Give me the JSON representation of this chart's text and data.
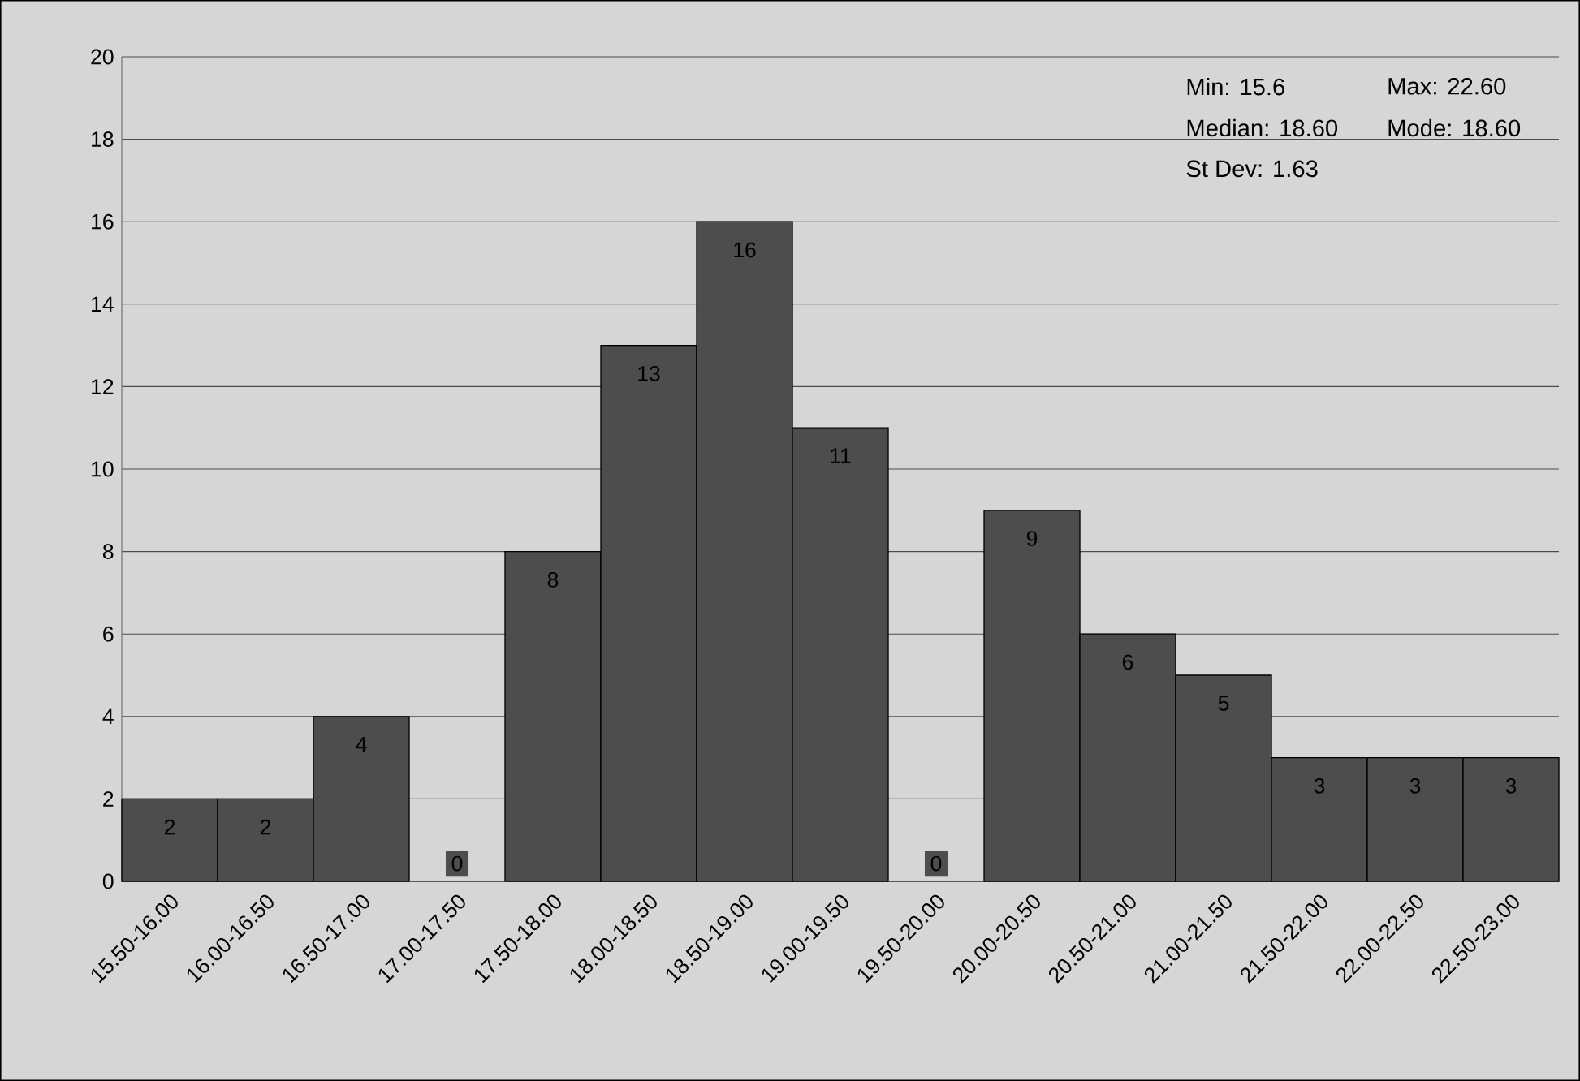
{
  "chart_data": {
    "type": "bar",
    "categories": [
      "15.50-16.00",
      "16.00-16.50",
      "16.50-17.00",
      "17.00-17.50",
      "17.50-18.00",
      "18.00-18.50",
      "18.50-19.00",
      "19.00-19.50",
      "19.50-20.00",
      "20.00-20.50",
      "20.50-21.00",
      "21.00-21.50",
      "21.50-22.00",
      "22.00-22.50",
      "22.50-23.00"
    ],
    "values": [
      2,
      2,
      4,
      0,
      8,
      13,
      16,
      11,
      0,
      9,
      6,
      5,
      3,
      3,
      3
    ],
    "color": "#4d4d4d",
    "ylim": [
      0,
      20
    ],
    "yticks": [
      0,
      2,
      4,
      6,
      8,
      10,
      12,
      14,
      16,
      18,
      20
    ],
    "grid": "y",
    "data_labels": true,
    "annotations": [
      "Min: 15.6",
      "Max: 22.60",
      "Median: 18.60",
      "Mode: 18.60",
      "St Dev: 1.63"
    ]
  }
}
